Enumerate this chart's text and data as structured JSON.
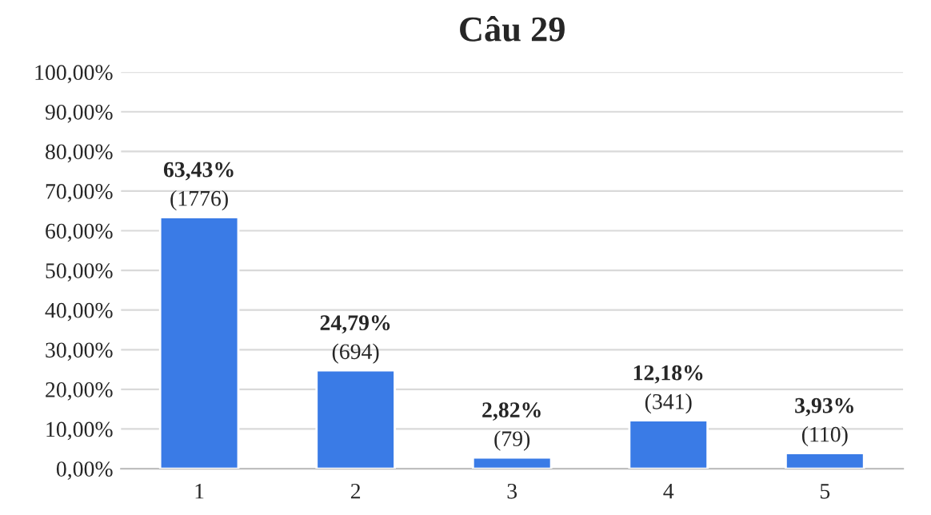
{
  "chart_data": {
    "type": "bar",
    "title": "Câu 29",
    "categories": [
      "1",
      "2",
      "3",
      "4",
      "5"
    ],
    "values": [
      63.43,
      24.79,
      2.82,
      12.18,
      3.93
    ],
    "value_labels": [
      "63,43%\n(1776)",
      "24,79%\n(694)",
      "2,82%\n(79)",
      "12,18%\n(341)",
      "3,93%\n(110)"
    ],
    "color": "#3a7be6",
    "ylim": [
      0,
      100
    ],
    "yticks": [
      {
        "value": 0,
        "label": "0,00%"
      },
      {
        "value": 10,
        "label": "10,00%"
      },
      {
        "value": 20,
        "label": "20,00%"
      },
      {
        "value": 30,
        "label": "30,00%"
      },
      {
        "value": 40,
        "label": "40,00%"
      },
      {
        "value": 50,
        "label": "50,00%"
      },
      {
        "value": 60,
        "label": "60,00%"
      },
      {
        "value": 70,
        "label": "70,00%"
      },
      {
        "value": 80,
        "label": "80,00%"
      },
      {
        "value": 90,
        "label": "90,00%"
      },
      {
        "value": 100,
        "label": "100,00%"
      }
    ],
    "grid": "y",
    "legend": false
  }
}
